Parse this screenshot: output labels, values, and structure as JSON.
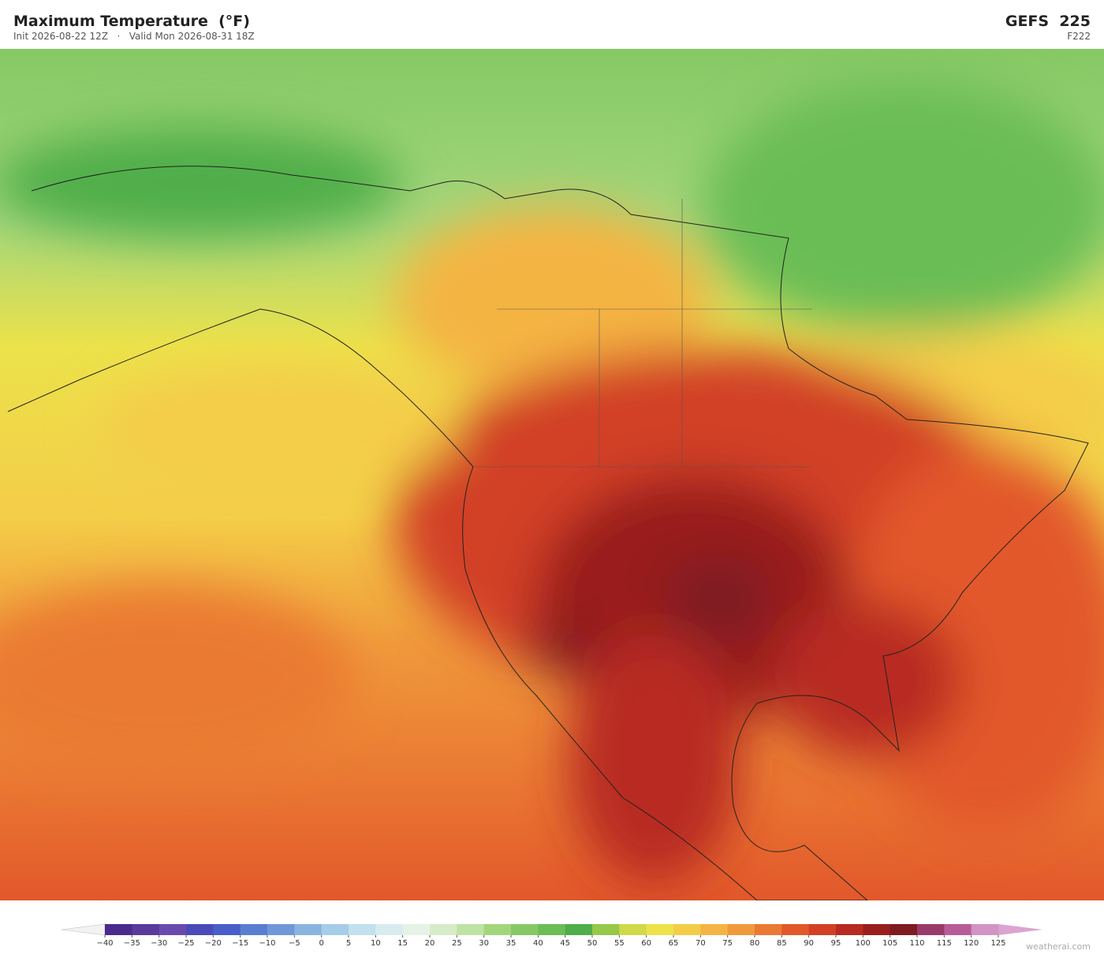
{
  "header": {
    "title": "Maximum Temperature  (°F)",
    "subtitle": "Init 2026-08-22 12Z   ·   Valid Mon 2026-08-31 18Z",
    "model": "GEFS  225",
    "forecast_hour": "F222"
  },
  "colorbar": {
    "ticks": [
      {
        "value": -40,
        "label": "−40"
      },
      {
        "value": -35,
        "label": "−35"
      },
      {
        "value": -30,
        "label": "−30"
      },
      {
        "value": -25,
        "label": "−25"
      },
      {
        "value": -20,
        "label": "−20"
      },
      {
        "value": -15,
        "label": "−15"
      },
      {
        "value": -10,
        "label": "−10"
      },
      {
        "value": -5,
        "label": "−5"
      },
      0,
      5,
      10,
      15,
      20,
      25,
      30,
      35,
      40,
      45,
      50,
      55,
      60,
      65,
      70,
      75,
      80,
      85,
      90,
      95,
      100,
      105,
      110,
      115,
      120,
      125
    ],
    "colors": [
      "#4a2a8c",
      "#5a3a9c",
      "#6a4aae",
      "#4a4ab8",
      "#4a5ec8",
      "#5a7fd0",
      "#6f98d8",
      "#8ab4e0",
      "#a6cde8",
      "#c2e0ee",
      "#d8ecf0",
      "#e6f2e6",
      "#d6ecc8",
      "#bfe3a2",
      "#a3d67c",
      "#86c964",
      "#6bbd55",
      "#4fae4a",
      "#96c84a",
      "#cfd94a",
      "#ece24a",
      "#f4cd48",
      "#f4b443",
      "#f09a3c",
      "#ea7a33",
      "#e2582b",
      "#d23f25",
      "#b82a22",
      "#9a1e1e",
      "#7e1a22",
      "#9a3a6a",
      "#b85c96",
      "#d294c4"
    ],
    "under_color": "#f2f2f2",
    "over_color": "#dca4d0"
  },
  "footer": {
    "credit": "weatherai.com"
  }
}
